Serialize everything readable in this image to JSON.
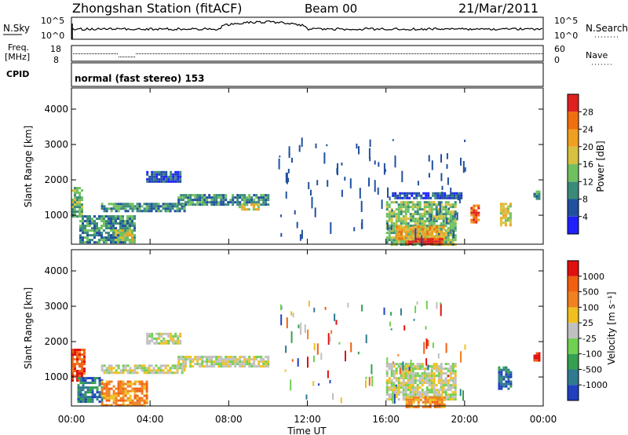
{
  "header": {
    "station": "Zhongshan Station (fitACF)",
    "beam": "Beam 00",
    "date": "21/Mar/2011"
  },
  "top_panels": {
    "nsky_label": "N.Sky",
    "nsky_top": "10^5",
    "nsky_bottom": "10^0",
    "nsearch_label": "N.Search",
    "nsearch_top": "10^5",
    "nsearch_bottom": "10^0",
    "freq_label_1": "Freq.",
    "freq_label_2": "[MHz]",
    "freq_top": "18",
    "freq_bottom": "8",
    "nave_label": "Nave",
    "nave_top": "60",
    "nave_bottom": "0",
    "cpid_label": "CPID",
    "cpid_text": "normal (fast stereo) 153"
  },
  "colors": {
    "power": [
      "#2020ff",
      "#2050a0",
      "#3a8a7a",
      "#70c060",
      "#d8c040",
      "#f0a020",
      "#f07010",
      "#e02020"
    ],
    "velocity": [
      "#2040c0",
      "#2f7a90",
      "#35a050",
      "#70d050",
      "#c0c0c0",
      "#f0c020",
      "#f08020",
      "#f06010",
      "#e01010"
    ]
  },
  "chart_data": [
    {
      "type": "heatmap",
      "title": "Power",
      "xlabel": "Time UT",
      "ylabel": "Slant Range [km]",
      "x_ticks": [
        "00:00",
        "04:00",
        "08:00",
        "12:00",
        "16:00",
        "20:00",
        "00:00"
      ],
      "y_ticks": [
        1000,
        2000,
        3000,
        4000
      ],
      "xlim_hours": [
        0,
        24
      ],
      "ylim_km": [
        180,
        4600
      ],
      "colorbar_label": "Power [dB]",
      "colorbar_ticks": [
        4,
        8,
        12,
        16,
        20,
        24,
        28
      ],
      "regions": [
        {
          "t0": 0.0,
          "t1": 0.5,
          "r0": 1000,
          "r1": 1800,
          "level": 3
        },
        {
          "t0": 0.4,
          "t1": 3.2,
          "r0": 250,
          "r1": 1000,
          "level": 2
        },
        {
          "t0": 2.2,
          "t1": 3.1,
          "r0": 300,
          "r1": 600,
          "level": 4
        },
        {
          "t0": 1.5,
          "t1": 5.8,
          "r0": 1100,
          "r1": 1350,
          "level": 2
        },
        {
          "t0": 3.8,
          "t1": 5.5,
          "r0": 1950,
          "r1": 2250,
          "level": 1
        },
        {
          "t0": 5.4,
          "t1": 10.0,
          "r0": 1300,
          "r1": 1600,
          "level": 2
        },
        {
          "t0": 8.5,
          "t1": 9.5,
          "r0": 1180,
          "r1": 1330,
          "level": 4
        },
        {
          "t0": 16.0,
          "t1": 19.5,
          "r0": 200,
          "r1": 1400,
          "level": 3
        },
        {
          "t0": 16.5,
          "t1": 19.0,
          "r0": 350,
          "r1": 700,
          "level": 5
        },
        {
          "t0": 17.0,
          "t1": 18.8,
          "r0": 180,
          "r1": 350,
          "level": 7
        },
        {
          "t0": 16.3,
          "t1": 19.8,
          "r0": 1500,
          "r1": 1650,
          "level": 1
        },
        {
          "t0": 20.3,
          "t1": 20.7,
          "r0": 800,
          "r1": 1300,
          "level": 6
        },
        {
          "t0": 21.8,
          "t1": 22.3,
          "r0": 700,
          "r1": 1350,
          "level": 4
        },
        {
          "t0": 23.5,
          "t1": 23.8,
          "r0": 1450,
          "r1": 1700,
          "level": 2
        }
      ]
    },
    {
      "type": "heatmap",
      "title": "Velocity",
      "xlabel": "Time UT",
      "ylabel": "Slant Range [km]",
      "x_ticks": [
        "00:00",
        "04:00",
        "08:00",
        "12:00",
        "16:00",
        "20:00",
        "00:00"
      ],
      "y_ticks": [
        1000,
        2000,
        3000,
        4000
      ],
      "xlim_hours": [
        0,
        24
      ],
      "ylim_km": [
        180,
        4600
      ],
      "colorbar_label": "Velocity [m s⁻¹]",
      "colorbar_ticks": [
        1000,
        500,
        100,
        25,
        -25,
        -100,
        -500,
        -1000
      ],
      "regions": [
        {
          "t0": 0.0,
          "t1": 0.6,
          "r0": 900,
          "r1": 1800,
          "level": 7
        },
        {
          "t0": 0.3,
          "t1": 1.6,
          "r0": 300,
          "r1": 1000,
          "level": 1
        },
        {
          "t0": 1.5,
          "t1": 3.8,
          "r0": 200,
          "r1": 900,
          "level": 6
        },
        {
          "t0": 1.5,
          "t1": 5.8,
          "r0": 1100,
          "r1": 1350,
          "level": 4
        },
        {
          "t0": 3.8,
          "t1": 5.5,
          "r0": 1950,
          "r1": 2250,
          "level": 4
        },
        {
          "t0": 5.4,
          "t1": 10.0,
          "r0": 1300,
          "r1": 1600,
          "level": 4
        },
        {
          "t0": 16.0,
          "t1": 19.5,
          "r0": 400,
          "r1": 1400,
          "level": 4
        },
        {
          "t0": 17.0,
          "t1": 19.0,
          "r0": 180,
          "r1": 450,
          "level": 6
        },
        {
          "t0": 21.7,
          "t1": 22.3,
          "r0": 700,
          "r1": 1300,
          "level": 1
        },
        {
          "t0": 23.5,
          "t1": 23.8,
          "r0": 1450,
          "r1": 1700,
          "level": 8
        }
      ]
    }
  ]
}
